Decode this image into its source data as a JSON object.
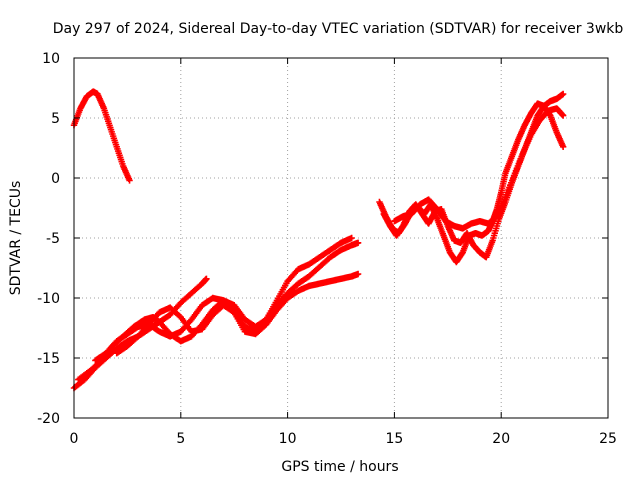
{
  "chart_data": {
    "type": "scatter",
    "title": "Day 297 of 2024, Sidereal Day-to-day VTEC variation (SDTVAR) for receiver 3wkb",
    "xlabel": "GPS time / hours",
    "ylabel": "SDTVAR / TECUs",
    "xlim": [
      0,
      25
    ],
    "ylim": [
      -20,
      10
    ],
    "xticks": [
      "0",
      "5",
      "10",
      "15",
      "20",
      "25"
    ],
    "yticks": [
      "-20",
      "-15",
      "-10",
      "-5",
      "0",
      "5",
      "10"
    ],
    "grid": true,
    "marker": "+",
    "colors": {
      "series": "#ff0000",
      "grid": "#a0a0a0",
      "axis": "#000000"
    },
    "series": [
      {
        "x": [
          0.0,
          0.3,
          0.6,
          0.9,
          1.1,
          1.4,
          1.7,
          2.0,
          2.3,
          2.6
        ],
        "y": [
          4.4,
          5.8,
          6.8,
          7.2,
          7.0,
          5.8,
          4.2,
          2.6,
          1.0,
          -0.2
        ]
      },
      {
        "x": [
          0.0,
          0.5,
          1.0,
          1.5,
          2.0,
          2.5,
          3.0,
          3.5,
          4.0,
          4.5,
          5.0,
          5.5,
          6.0,
          6.2
        ],
        "y": [
          -17.5,
          -16.8,
          -15.8,
          -15.0,
          -14.2,
          -13.6,
          -13.2,
          -12.6,
          -12.0,
          -11.4,
          -10.4,
          -9.6,
          -8.8,
          -8.4
        ]
      },
      {
        "x": [
          0.2,
          0.8,
          1.3,
          1.8,
          2.3,
          2.8,
          3.3,
          3.7,
          4.0,
          4.5,
          5.0,
          5.5,
          6.0,
          6.5,
          7.0,
          7.5,
          8.0,
          8.5,
          9.0,
          9.5,
          10.0,
          10.5,
          11.0,
          11.5,
          12.0,
          12.5,
          13.0,
          13.3
        ],
        "y": [
          -16.8,
          -16.0,
          -15.2,
          -14.0,
          -13.2,
          -12.4,
          -11.8,
          -11.6,
          -12.0,
          -13.0,
          -13.6,
          -13.2,
          -12.2,
          -11.0,
          -10.2,
          -10.6,
          -11.8,
          -12.4,
          -11.8,
          -10.6,
          -9.6,
          -8.8,
          -8.2,
          -7.4,
          -6.6,
          -6.0,
          -5.6,
          -5.4
        ]
      },
      {
        "x": [
          1.0,
          1.5,
          2.0,
          2.5,
          3.0,
          3.5,
          4.0,
          4.5,
          5.0,
          5.5,
          6.0,
          6.5,
          7.0,
          7.5,
          8.0,
          8.5,
          9.0,
          9.5,
          10.0,
          10.5,
          11.0,
          11.5,
          12.0,
          12.5,
          13.0
        ],
        "y": [
          -15.2,
          -14.6,
          -13.6,
          -13.0,
          -12.4,
          -12.2,
          -12.8,
          -13.2,
          -12.8,
          -11.8,
          -10.6,
          -10.0,
          -10.2,
          -11.2,
          -12.4,
          -12.8,
          -11.8,
          -10.2,
          -8.6,
          -7.6,
          -7.2,
          -6.6,
          -6.0,
          -5.4,
          -5.0
        ]
      },
      {
        "x": [
          2.0,
          2.5,
          3.0,
          3.5,
          4.0,
          4.5,
          5.0,
          5.5,
          6.0,
          6.5,
          7.0,
          7.5,
          8.0,
          8.5,
          9.0,
          9.5,
          10.0,
          10.5,
          11.0,
          11.5,
          12.0,
          12.5,
          13.0,
          13.3
        ],
        "y": [
          -14.6,
          -14.0,
          -13.2,
          -12.2,
          -11.2,
          -10.8,
          -11.6,
          -12.8,
          -12.6,
          -11.4,
          -10.6,
          -11.2,
          -12.8,
          -13.0,
          -12.2,
          -11.0,
          -10.0,
          -9.4,
          -9.0,
          -8.8,
          -8.6,
          -8.4,
          -8.2,
          -8.0
        ]
      },
      {
        "x": [
          14.3,
          14.6,
          14.9,
          15.2,
          15.5,
          15.8,
          16.1,
          16.4,
          16.7,
          17.0,
          17.3,
          17.6,
          17.9,
          18.2,
          18.5,
          18.8,
          19.1,
          19.4,
          19.6,
          19.8,
          20.0,
          20.2,
          20.5,
          20.8,
          21.1,
          21.4,
          21.7,
          22.0,
          22.3,
          22.6,
          22.9
        ],
        "y": [
          -2.0,
          -3.2,
          -4.2,
          -4.6,
          -3.8,
          -2.8,
          -2.4,
          -3.0,
          -2.2,
          -3.4,
          -4.8,
          -6.2,
          -7.0,
          -6.2,
          -4.8,
          -4.6,
          -4.8,
          -4.4,
          -3.6,
          -2.6,
          -1.2,
          0.4,
          1.8,
          3.2,
          4.4,
          5.4,
          6.2,
          6.0,
          5.2,
          3.8,
          2.6
        ]
      },
      {
        "x": [
          14.5,
          14.8,
          15.1,
          15.4,
          15.7,
          16.0,
          16.3,
          16.6,
          16.9,
          17.2,
          17.5,
          17.8,
          18.1,
          18.4,
          18.7,
          19.0,
          19.3,
          19.6,
          19.9,
          20.2,
          20.5,
          20.8,
          21.1,
          21.4,
          21.7,
          22.0,
          22.3,
          22.6,
          22.9
        ],
        "y": [
          -3.0,
          -4.0,
          -4.8,
          -4.0,
          -2.8,
          -2.2,
          -3.0,
          -3.8,
          -2.8,
          -2.6,
          -4.0,
          -5.2,
          -5.4,
          -4.6,
          -5.6,
          -6.2,
          -6.6,
          -5.2,
          -3.4,
          -2.0,
          -0.4,
          1.0,
          2.4,
          3.8,
          5.2,
          6.0,
          6.4,
          6.6,
          7.0
        ]
      },
      {
        "x": [
          15.0,
          15.4,
          15.8,
          16.2,
          16.6,
          17.0,
          17.4,
          17.8,
          18.2,
          18.6,
          19.0,
          19.4,
          19.8,
          20.2,
          20.6,
          21.0,
          21.4,
          21.8,
          22.2,
          22.6,
          22.9
        ],
        "y": [
          -3.6,
          -3.2,
          -3.0,
          -2.2,
          -1.8,
          -2.6,
          -3.6,
          -4.0,
          -4.2,
          -3.8,
          -3.6,
          -3.8,
          -3.2,
          -1.6,
          0.2,
          2.0,
          3.6,
          4.8,
          5.6,
          5.8,
          5.2
        ]
      }
    ]
  }
}
